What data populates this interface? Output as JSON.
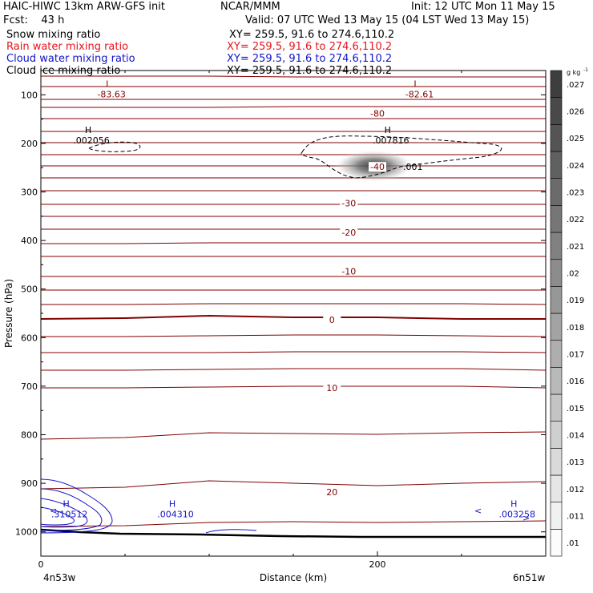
{
  "header": {
    "left1": "HAIC-HIWC 13km ARW-GFS init",
    "center1": "NCAR/MMM",
    "right1": "Init: 12 UTC Mon 11 May 15",
    "left2": "Fcst:    43 h",
    "valid": "Valid: 07 UTC Wed 13 May 15 (04 LST Wed 13 May 15)"
  },
  "fields": [
    {
      "name": "Snow mixing ratio",
      "xy": "XY= 259.5, 91.6 to 274.6,110.2",
      "color": "#000000"
    },
    {
      "name": "Rain water mixing ratio",
      "xy": "XY= 259.5, 91.6 to 274.6,110.2",
      "color": "#e8141c"
    },
    {
      "name": "Cloud water mixing ratio",
      "xy": "XY= 259.5, 91.6 to 274.6,110.2",
      "color": "#1414c8"
    },
    {
      "name": "Cloud ice mixing ratio",
      "xy": "XY= 259.5, 91.6 to 274.6,110.2",
      "color": "#000000"
    }
  ],
  "chart_data": {
    "type": "cross-section contour",
    "xlabel": "Distance (km)",
    "ylabel": "Pressure (hPa)",
    "xlim": [
      0,
      300
    ],
    "ylim": [
      1050,
      50
    ],
    "x_ticks": [
      "0",
      "200"
    ],
    "x_tick_values": [
      0,
      200
    ],
    "y_ticks": [
      "100",
      "200",
      "300",
      "400",
      "500",
      "600",
      "700",
      "800",
      "900",
      "1000"
    ],
    "y_tick_values": [
      100,
      200,
      300,
      400,
      500,
      600,
      700,
      800,
      900,
      1000
    ],
    "endpoint_left": "4n53w",
    "endpoint_right": "6n51w",
    "temperature_contour_labels": [
      {
        "text": "-80",
        "x": 200,
        "p": 140
      },
      {
        "text": "-40",
        "x": 200,
        "p": 250
      },
      {
        "text": "-30",
        "x": 183,
        "p": 325
      },
      {
        "text": "-20",
        "x": 183,
        "p": 385
      },
      {
        "text": "-10",
        "x": 183,
        "p": 465
      },
      {
        "text": "0",
        "x": 173,
        "p": 565
      },
      {
        "text": "10",
        "x": 173,
        "p": 705
      },
      {
        "text": "20",
        "x": 173,
        "p": 920
      }
    ],
    "extrema_labels": [
      {
        "type": "L",
        "value": "-83.63",
        "x": 42,
        "p": 95,
        "color": "#800000"
      },
      {
        "type": "L",
        "value": "-82.61",
        "x": 225,
        "p": 95,
        "color": "#800000"
      },
      {
        "type": "H",
        "value": ".002056",
        "x": 30,
        "p": 190,
        "color": "#000000"
      },
      {
        "type": "H",
        "value": ".007816",
        "x": 208,
        "p": 190,
        "color": "#000000"
      },
      {
        "type": "H",
        "value": ".310512",
        "x": 17,
        "p": 960,
        "color": "#1414c8"
      },
      {
        "type": "H",
        "value": ".004310",
        "x": 80,
        "p": 960,
        "color": "#1414c8"
      },
      {
        "type": "H",
        "value": ".003258",
        "x": 283,
        "p": 960,
        "color": "#1414c8"
      }
    ],
    "dashed_contour_label": ".001",
    "colorbar": {
      "unit": "g kg",
      "unit_exp": "-1",
      "labels": [
        ".01",
        ".011",
        ".012",
        ".013",
        ".014",
        ".015",
        ".016",
        ".017",
        ".018",
        ".019",
        ".02",
        ".021",
        ".022",
        ".023",
        ".024",
        ".025",
        ".026",
        ".027"
      ]
    }
  }
}
